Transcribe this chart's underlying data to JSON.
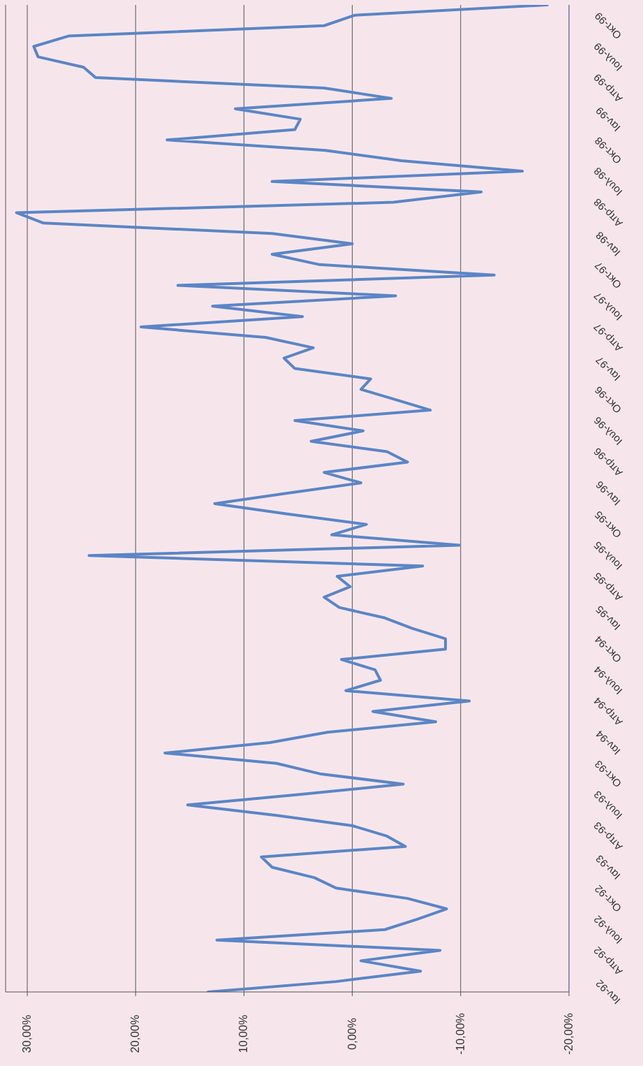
{
  "chart_data": {
    "type": "line",
    "orientation": "horizontal",
    "categories": [
      null,
      null,
      "Οκτ-99",
      null,
      null,
      "Ιουλ-99",
      null,
      null,
      "Απρ-99",
      null,
      null,
      "Ιαν-99",
      null,
      null,
      "Οκτ-98",
      null,
      null,
      "Ιουλ-98",
      null,
      null,
      "Απρ-98",
      null,
      null,
      "Ιαν-98",
      null,
      null,
      "Οκτ-97",
      null,
      null,
      "Ιουλ-97",
      null,
      null,
      "Απρ-97",
      null,
      null,
      "Ιαν-97",
      null,
      null,
      "Οκτ-96",
      null,
      null,
      "Ιουλ-96",
      null,
      null,
      "Απρ-96",
      null,
      null,
      "Ιαν-96",
      null,
      null,
      "Οκτ-95",
      null,
      null,
      "Ιουλ-95",
      null,
      null,
      "Απρ-95",
      null,
      null,
      "Ιαν-95",
      null,
      null,
      "Οκτ-94",
      null,
      null,
      "Ιουλ-94",
      null,
      null,
      "Απρ-94",
      null,
      null,
      "Ιαν-94",
      null,
      null,
      "Οκτ-93",
      null,
      null,
      "Ιουλ-93",
      null,
      null,
      "Απρ-93",
      null,
      null,
      "Ιαν-93",
      null,
      null,
      "Οκτ-92",
      null,
      null,
      "Ιουλ-92",
      null,
      null,
      "Απρ-92",
      null,
      null,
      "Ιαν-92"
    ],
    "series": [
      {
        "color": "#5b85c5",
        "values": [
          -18,
          -0.2,
          2.6,
          26.2,
          29.4,
          29,
          24.8,
          23.7,
          2.6,
          -3.6,
          10.8,
          4.8,
          5.3,
          17.1,
          2.5,
          -4.5,
          -15.7,
          7.4,
          -11.9,
          -3.8,
          31,
          28.5,
          7.4,
          0,
          7.4,
          3,
          -13.1,
          16.1,
          -4,
          12.9,
          4.6,
          19.5,
          8,
          3.6,
          6.3,
          5.3,
          -1.7,
          -0.8,
          -4,
          -7.2,
          5.3,
          -1,
          3.8,
          -3.2,
          -5.1,
          2.6,
          -0.8,
          6,
          12.7,
          6,
          -1.3,
          1.9,
          -9.9,
          24.3,
          -6.5,
          1.4,
          0.2,
          2.6,
          1.2,
          -3,
          -5.5,
          -8.6,
          -8.6,
          1,
          -2.1,
          -2.6,
          0.6,
          -10.8,
          -1.9,
          -7.7,
          2.3,
          7.6,
          17.3,
          7,
          3,
          -4.7,
          5,
          15.2,
          7,
          0,
          -3.2,
          -4.9,
          8.4,
          7.4,
          3.5,
          1.5,
          -5.1,
          -8.7,
          -6,
          -3,
          12.5,
          -8.1,
          -0.8,
          -6.3,
          1.5,
          13.3
        ]
      }
    ],
    "xlim": [
      32,
      -20
    ],
    "xticks": [
      {
        "value": 30,
        "label": "30,00%"
      },
      {
        "value": 20,
        "label": "20,00%"
      },
      {
        "value": 10,
        "label": "10,00%"
      },
      {
        "value": 0,
        "label": "0,00%"
      },
      {
        "value": -10,
        "label": "-10,00%"
      },
      {
        "value": -20,
        "label": "-20,00%"
      }
    ],
    "grid": "x",
    "legend": false,
    "marker": "none"
  }
}
